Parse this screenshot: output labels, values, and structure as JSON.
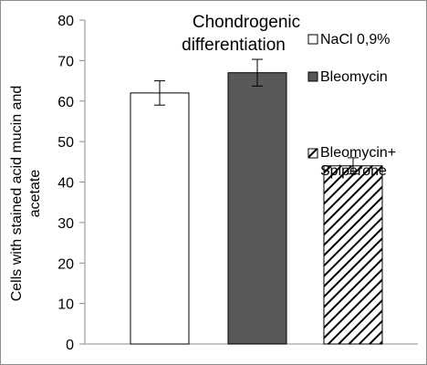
{
  "chart_data": {
    "type": "bar",
    "title_lines": [
      "Chondrogenic",
      "differentiation"
    ],
    "xlabel": "",
    "ylabel_lines": [
      "Cells with stained acid mucin and",
      "acetate"
    ],
    "ylim": [
      0,
      80
    ],
    "yticks": [
      0,
      10,
      20,
      30,
      40,
      50,
      60,
      70,
      80
    ],
    "grid": false,
    "legend_position": "top-right",
    "series": [
      {
        "name": "NaCl 0,9%",
        "value": 62,
        "error": 3,
        "fill": "#ffffff",
        "pattern": "none"
      },
      {
        "name": "Bleomycin",
        "value": 67,
        "error": 3.3,
        "fill": "#595959",
        "pattern": "none"
      },
      {
        "name": "Bleomycin+ Spiperone",
        "legend_lines": [
          "Bleomycin+",
          "Spiperone"
        ],
        "value": 44,
        "error": 2,
        "fill": "#ffffff",
        "pattern": "diagonal"
      }
    ]
  }
}
